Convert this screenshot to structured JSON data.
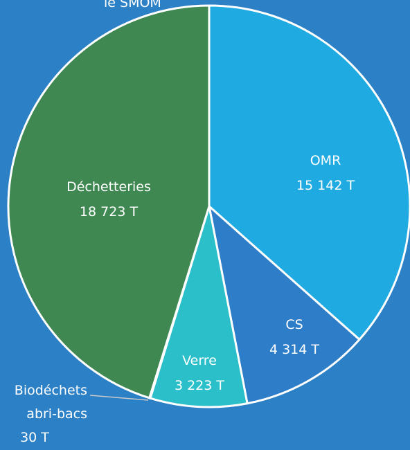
{
  "chart_data": {
    "type": "pie",
    "title": "le SMOM",
    "categories": [
      "OMR",
      "CS",
      "Verre",
      "Biodéchets abri-bacs",
      "Déchetteries"
    ],
    "values": [
      15142,
      4314,
      3223,
      30,
      18723
    ],
    "value_labels": [
      "15 142 T",
      "4 314 T",
      "3 223 T",
      "30 T",
      "18 723 T"
    ],
    "colors": [
      "#1faae2",
      "#2e7dc8",
      "#2bc0c9",
      "#2bc0c9",
      "#3f8852"
    ]
  }
}
